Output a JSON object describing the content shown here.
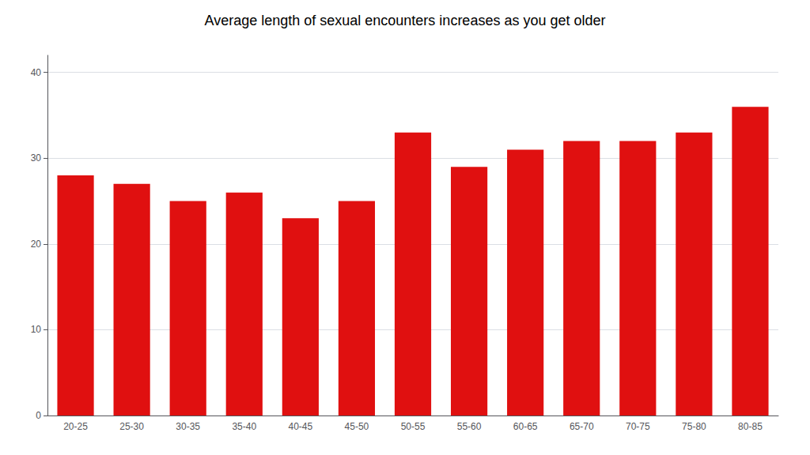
{
  "chart_data": {
    "type": "bar",
    "title": "Average length of sexual encounters increases as you get older",
    "categories": [
      "20-25",
      "25-30",
      "30-35",
      "35-40",
      "40-45",
      "45-50",
      "50-55",
      "55-60",
      "60-65",
      "65-70",
      "70-75",
      "75-80",
      "80-85"
    ],
    "values": [
      28,
      27,
      25,
      26,
      23,
      25,
      33,
      29,
      31,
      32,
      32,
      33,
      36
    ],
    "color": "#e01010",
    "ylim": [
      0,
      42
    ],
    "yticks": [
      0,
      10,
      20,
      30,
      40
    ],
    "grid": true
  }
}
